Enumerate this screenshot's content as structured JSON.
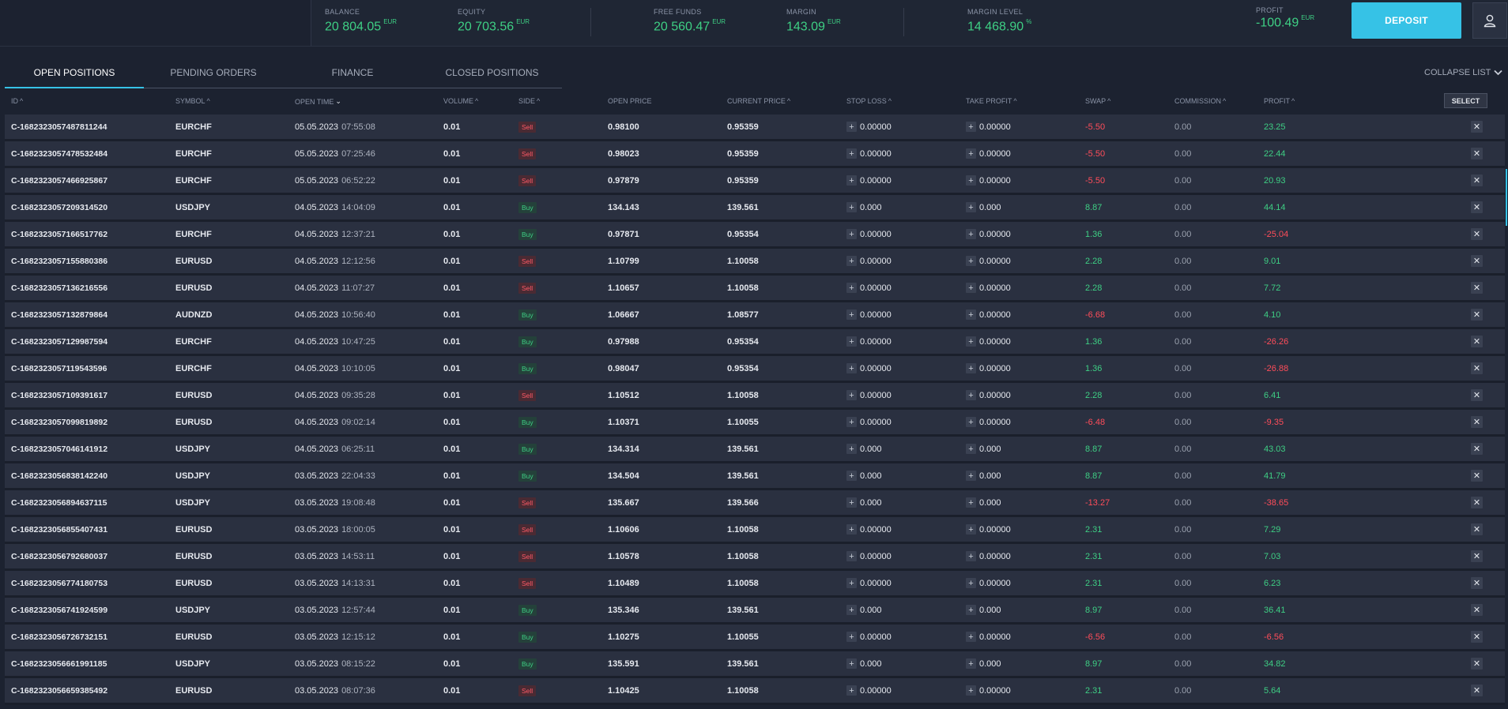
{
  "header": {
    "balance": {
      "label": "BALANCE",
      "value": "20 804.05",
      "unit": "EUR"
    },
    "equity": {
      "label": "EQUITY",
      "value": "20 703.56",
      "unit": "EUR"
    },
    "free_funds": {
      "label": "FREE FUNDS",
      "value": "20 560.47",
      "unit": "EUR"
    },
    "margin": {
      "label": "MARGIN",
      "value": "143.09",
      "unit": "EUR"
    },
    "margin_level": {
      "label": "MARGIN LEVEL",
      "value": "14 468.90",
      "unit": "%"
    },
    "profit": {
      "label": "PROFIT",
      "value": "-100.49",
      "unit": "EUR"
    },
    "deposit_label": "DEPOSIT",
    "user_icon": "user-icon"
  },
  "tabs": [
    {
      "label": "OPEN POSITIONS",
      "active": true
    },
    {
      "label": "PENDING ORDERS",
      "active": false
    },
    {
      "label": "FINANCE",
      "active": false
    },
    {
      "label": "CLOSED POSITIONS",
      "active": false
    }
  ],
  "collapse_label": "COLLAPSE LIST",
  "columns": {
    "id": "ID",
    "symbol": "SYMBOL",
    "open_time": "OPEN TIME",
    "volume": "VOLUME",
    "side": "SIDE",
    "open_price": "OPEN PRICE",
    "current_price": "CURRENT PRICE",
    "stop_loss": "STOP LOSS",
    "take_profit": "TAKE PROFIT",
    "swap": "SWAP",
    "commission": "COMMISSION",
    "profit": "PROFIT"
  },
  "select_label": "SELECT",
  "rows": [
    {
      "id": "C-1682323057487811244",
      "symbol": "EURCHF",
      "date": "05.05.2023",
      "time": "07:55:08",
      "volume": "0.01",
      "side": "Sell",
      "open_price": "0.98100",
      "current_price": "0.95359",
      "stop_loss": "0.00000",
      "take_profit": "0.00000",
      "swap": "-5.50",
      "commission": "0.00",
      "profit": "23.25"
    },
    {
      "id": "C-1682323057478532484",
      "symbol": "EURCHF",
      "date": "05.05.2023",
      "time": "07:25:46",
      "volume": "0.01",
      "side": "Sell",
      "open_price": "0.98023",
      "current_price": "0.95359",
      "stop_loss": "0.00000",
      "take_profit": "0.00000",
      "swap": "-5.50",
      "commission": "0.00",
      "profit": "22.44"
    },
    {
      "id": "C-1682323057466925867",
      "symbol": "EURCHF",
      "date": "05.05.2023",
      "time": "06:52:22",
      "volume": "0.01",
      "side": "Sell",
      "open_price": "0.97879",
      "current_price": "0.95359",
      "stop_loss": "0.00000",
      "take_profit": "0.00000",
      "swap": "-5.50",
      "commission": "0.00",
      "profit": "20.93"
    },
    {
      "id": "C-1682323057209314520",
      "symbol": "USDJPY",
      "date": "04.05.2023",
      "time": "14:04:09",
      "volume": "0.01",
      "side": "Buy",
      "open_price": "134.143",
      "current_price": "139.561",
      "stop_loss": "0.000",
      "take_profit": "0.000",
      "swap": "8.87",
      "commission": "0.00",
      "profit": "44.14"
    },
    {
      "id": "C-1682323057166517762",
      "symbol": "EURCHF",
      "date": "04.05.2023",
      "time": "12:37:21",
      "volume": "0.01",
      "side": "Buy",
      "open_price": "0.97871",
      "current_price": "0.95354",
      "stop_loss": "0.00000",
      "take_profit": "0.00000",
      "swap": "1.36",
      "commission": "0.00",
      "profit": "-25.04"
    },
    {
      "id": "C-1682323057155880386",
      "symbol": "EURUSD",
      "date": "04.05.2023",
      "time": "12:12:56",
      "volume": "0.01",
      "side": "Sell",
      "open_price": "1.10799",
      "current_price": "1.10058",
      "stop_loss": "0.00000",
      "take_profit": "0.00000",
      "swap": "2.28",
      "commission": "0.00",
      "profit": "9.01"
    },
    {
      "id": "C-1682323057136216556",
      "symbol": "EURUSD",
      "date": "04.05.2023",
      "time": "11:07:27",
      "volume": "0.01",
      "side": "Sell",
      "open_price": "1.10657",
      "current_price": "1.10058",
      "stop_loss": "0.00000",
      "take_profit": "0.00000",
      "swap": "2.28",
      "commission": "0.00",
      "profit": "7.72"
    },
    {
      "id": "C-1682323057132879864",
      "symbol": "AUDNZD",
      "date": "04.05.2023",
      "time": "10:56:40",
      "volume": "0.01",
      "side": "Buy",
      "open_price": "1.06667",
      "current_price": "1.08577",
      "stop_loss": "0.00000",
      "take_profit": "0.00000",
      "swap": "-6.68",
      "commission": "0.00",
      "profit": "4.10"
    },
    {
      "id": "C-1682323057129987594",
      "symbol": "EURCHF",
      "date": "04.05.2023",
      "time": "10:47:25",
      "volume": "0.01",
      "side": "Buy",
      "open_price": "0.97988",
      "current_price": "0.95354",
      "stop_loss": "0.00000",
      "take_profit": "0.00000",
      "swap": "1.36",
      "commission": "0.00",
      "profit": "-26.26"
    },
    {
      "id": "C-1682323057119543596",
      "symbol": "EURCHF",
      "date": "04.05.2023",
      "time": "10:10:05",
      "volume": "0.01",
      "side": "Buy",
      "open_price": "0.98047",
      "current_price": "0.95354",
      "stop_loss": "0.00000",
      "take_profit": "0.00000",
      "swap": "1.36",
      "commission": "0.00",
      "profit": "-26.88"
    },
    {
      "id": "C-1682323057109391617",
      "symbol": "EURUSD",
      "date": "04.05.2023",
      "time": "09:35:28",
      "volume": "0.01",
      "side": "Sell",
      "open_price": "1.10512",
      "current_price": "1.10058",
      "stop_loss": "0.00000",
      "take_profit": "0.00000",
      "swap": "2.28",
      "commission": "0.00",
      "profit": "6.41"
    },
    {
      "id": "C-1682323057099819892",
      "symbol": "EURUSD",
      "date": "04.05.2023",
      "time": "09:02:14",
      "volume": "0.01",
      "side": "Buy",
      "open_price": "1.10371",
      "current_price": "1.10055",
      "stop_loss": "0.00000",
      "take_profit": "0.00000",
      "swap": "-6.48",
      "commission": "0.00",
      "profit": "-9.35"
    },
    {
      "id": "C-1682323057046141912",
      "symbol": "USDJPY",
      "date": "04.05.2023",
      "time": "06:25:11",
      "volume": "0.01",
      "side": "Buy",
      "open_price": "134.314",
      "current_price": "139.561",
      "stop_loss": "0.000",
      "take_profit": "0.000",
      "swap": "8.87",
      "commission": "0.00",
      "profit": "43.03"
    },
    {
      "id": "C-1682323056838142240",
      "symbol": "USDJPY",
      "date": "03.05.2023",
      "time": "22:04:33",
      "volume": "0.01",
      "side": "Buy",
      "open_price": "134.504",
      "current_price": "139.561",
      "stop_loss": "0.000",
      "take_profit": "0.000",
      "swap": "8.87",
      "commission": "0.00",
      "profit": "41.79"
    },
    {
      "id": "C-1682323056894637115",
      "symbol": "USDJPY",
      "date": "03.05.2023",
      "time": "19:08:48",
      "volume": "0.01",
      "side": "Sell",
      "open_price": "135.667",
      "current_price": "139.566",
      "stop_loss": "0.000",
      "take_profit": "0.000",
      "swap": "-13.27",
      "commission": "0.00",
      "profit": "-38.65"
    },
    {
      "id": "C-1682323056855407431",
      "symbol": "EURUSD",
      "date": "03.05.2023",
      "time": "18:00:05",
      "volume": "0.01",
      "side": "Sell",
      "open_price": "1.10606",
      "current_price": "1.10058",
      "stop_loss": "0.00000",
      "take_profit": "0.00000",
      "swap": "2.31",
      "commission": "0.00",
      "profit": "7.29"
    },
    {
      "id": "C-1682323056792680037",
      "symbol": "EURUSD",
      "date": "03.05.2023",
      "time": "14:53:11",
      "volume": "0.01",
      "side": "Sell",
      "open_price": "1.10578",
      "current_price": "1.10058",
      "stop_loss": "0.00000",
      "take_profit": "0.00000",
      "swap": "2.31",
      "commission": "0.00",
      "profit": "7.03"
    },
    {
      "id": "C-1682323056774180753",
      "symbol": "EURUSD",
      "date": "03.05.2023",
      "time": "14:13:31",
      "volume": "0.01",
      "side": "Sell",
      "open_price": "1.10489",
      "current_price": "1.10058",
      "stop_loss": "0.00000",
      "take_profit": "0.00000",
      "swap": "2.31",
      "commission": "0.00",
      "profit": "6.23"
    },
    {
      "id": "C-1682323056741924599",
      "symbol": "USDJPY",
      "date": "03.05.2023",
      "time": "12:57:44",
      "volume": "0.01",
      "side": "Buy",
      "open_price": "135.346",
      "current_price": "139.561",
      "stop_loss": "0.000",
      "take_profit": "0.000",
      "swap": "8.97",
      "commission": "0.00",
      "profit": "36.41"
    },
    {
      "id": "C-1682323056726732151",
      "symbol": "EURUSD",
      "date": "03.05.2023",
      "time": "12:15:12",
      "volume": "0.01",
      "side": "Buy",
      "open_price": "1.10275",
      "current_price": "1.10055",
      "stop_loss": "0.00000",
      "take_profit": "0.00000",
      "swap": "-6.56",
      "commission": "0.00",
      "profit": "-6.56"
    },
    {
      "id": "C-1682323056661991185",
      "symbol": "USDJPY",
      "date": "03.05.2023",
      "time": "08:15:22",
      "volume": "0.01",
      "side": "Buy",
      "open_price": "135.591",
      "current_price": "139.561",
      "stop_loss": "0.000",
      "take_profit": "0.000",
      "swap": "8.97",
      "commission": "0.00",
      "profit": "34.82"
    },
    {
      "id": "C-1682323056659385492",
      "symbol": "EURUSD",
      "date": "03.05.2023",
      "time": "08:07:36",
      "volume": "0.01",
      "side": "Sell",
      "open_price": "1.10425",
      "current_price": "1.10058",
      "stop_loss": "0.00000",
      "take_profit": "0.00000",
      "swap": "2.31",
      "commission": "0.00",
      "profit": "5.64"
    }
  ],
  "colors": {
    "accent": "#36c2e6",
    "positive": "#3ecf84",
    "negative": "#ff4d5a",
    "background": "#1c2230"
  }
}
